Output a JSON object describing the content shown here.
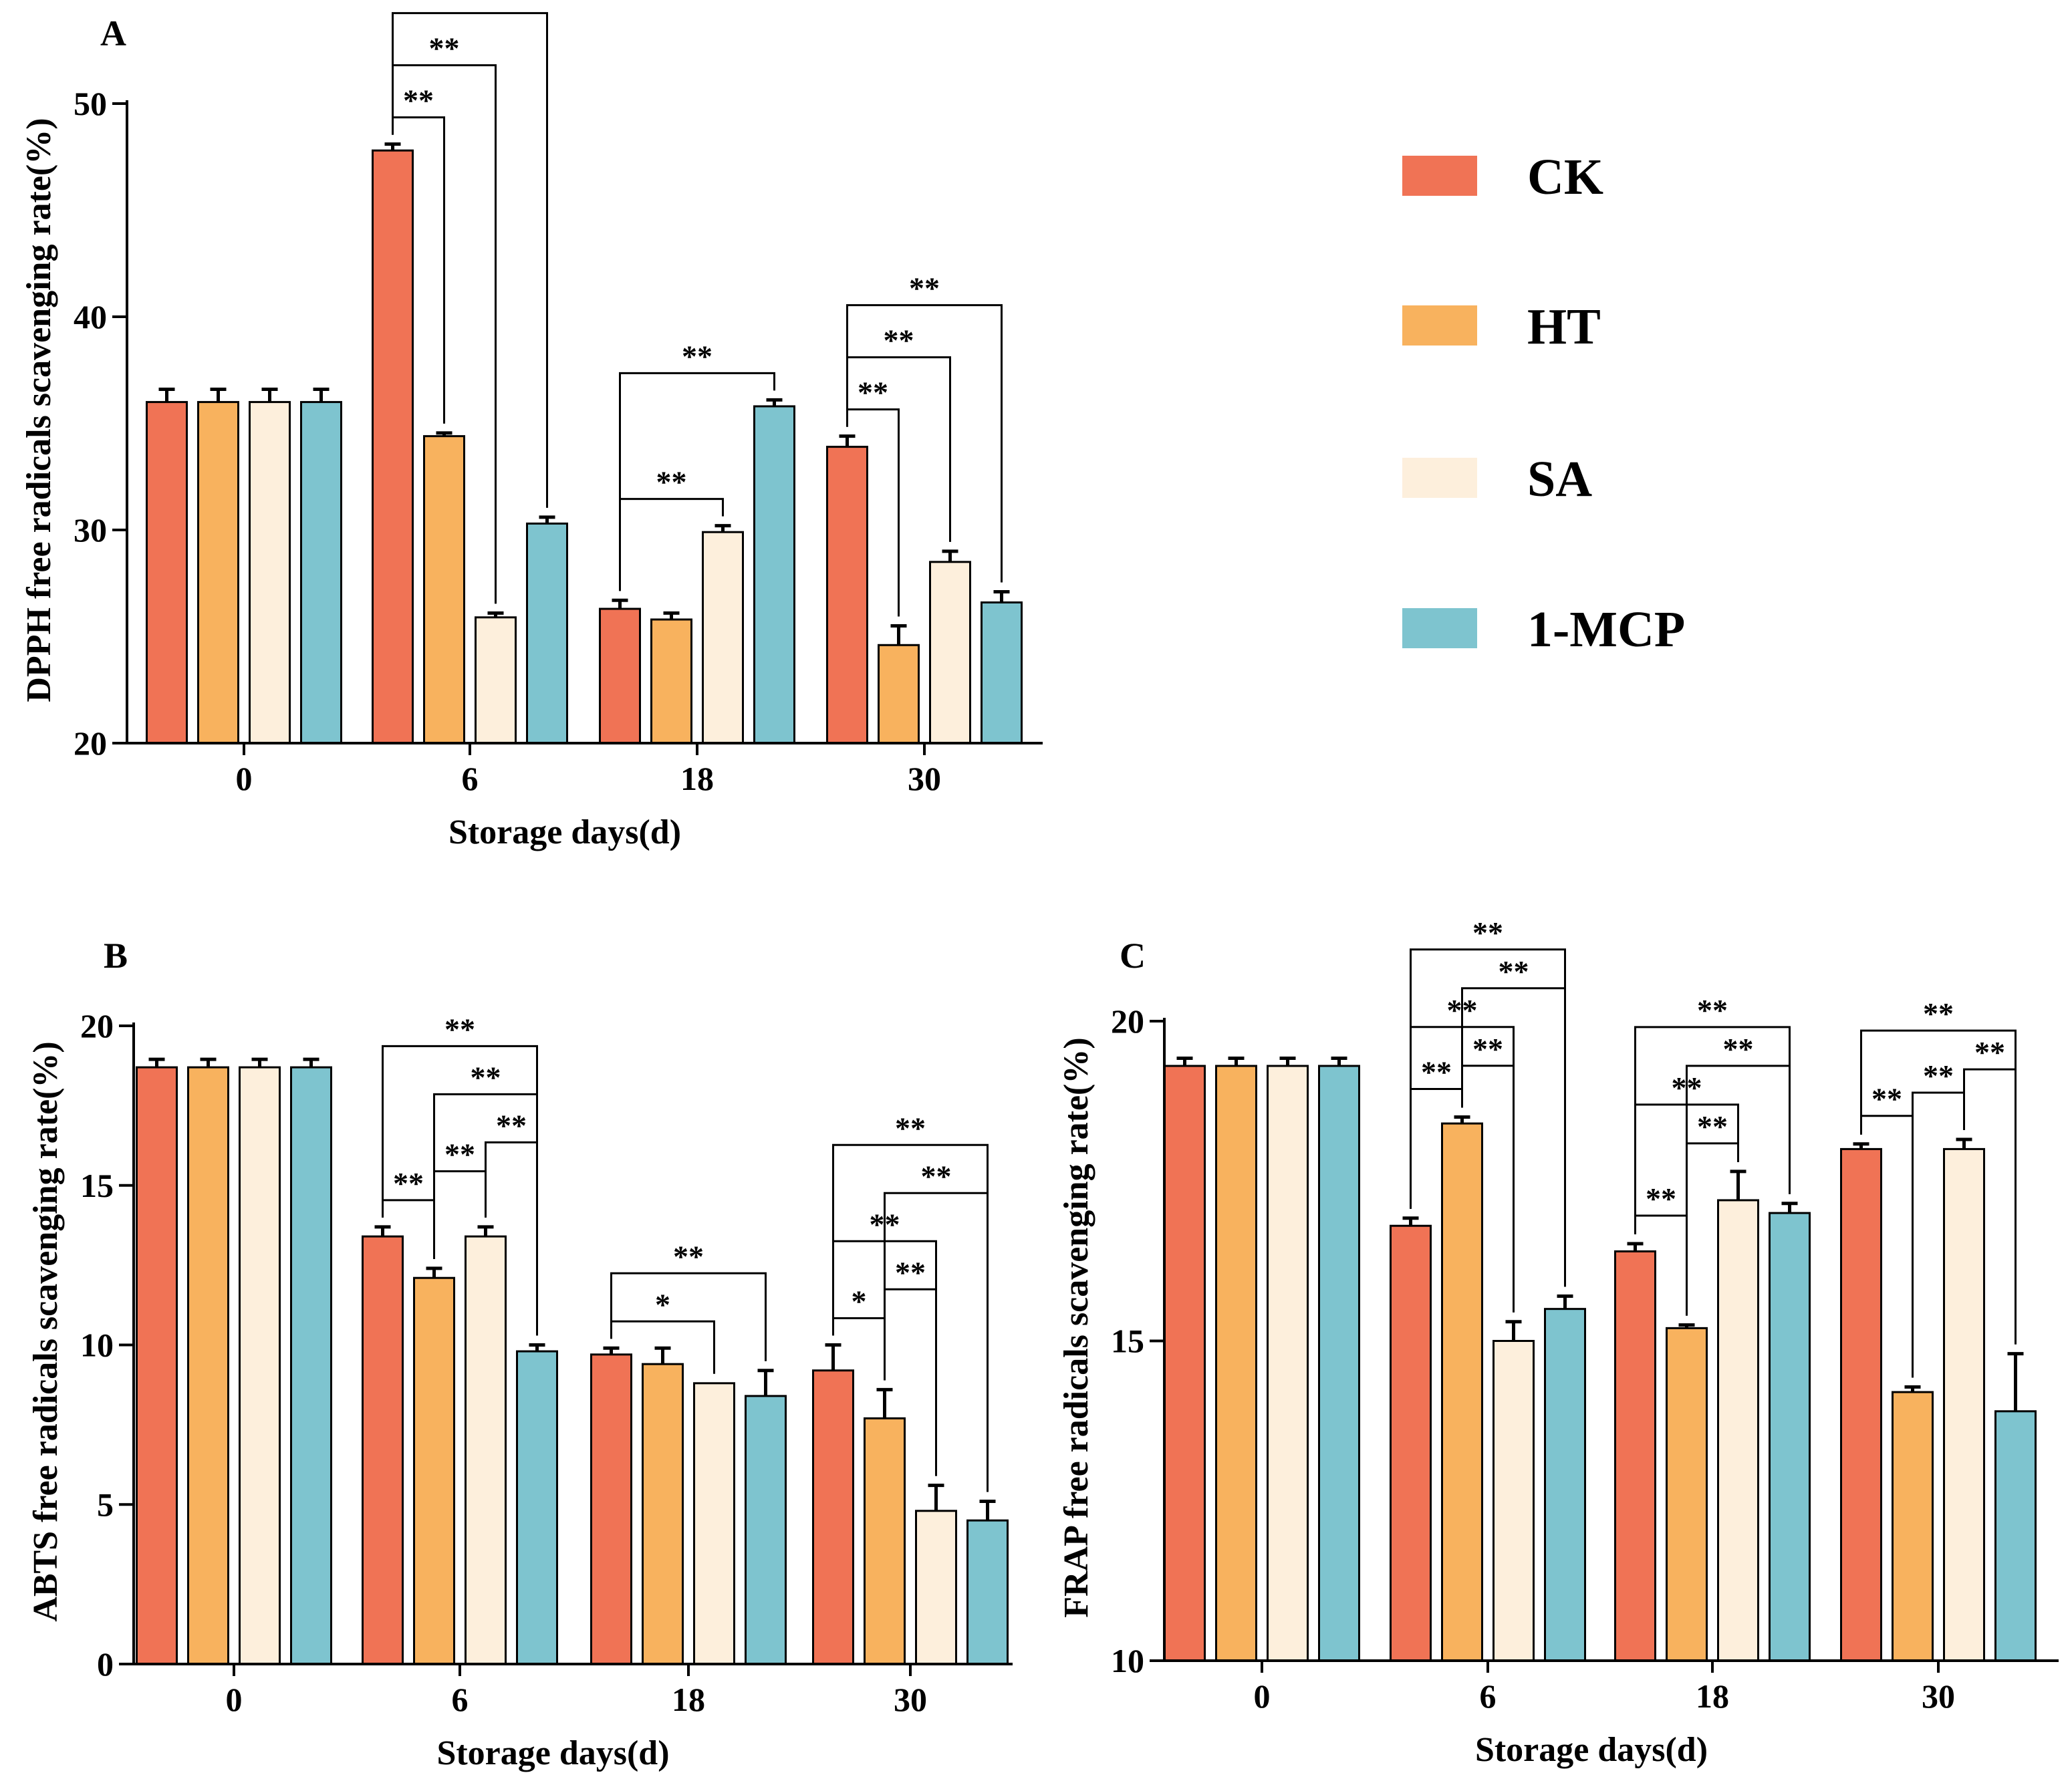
{
  "colors": {
    "CK": "#f07355",
    "HT": "#f8b25e",
    "SA": "#fdefdc",
    "1-MCP": "#7ec4cf"
  },
  "legend": {
    "labels": [
      "CK",
      "HT",
      "SA",
      "1-MCP"
    ]
  },
  "chart_data": [
    {
      "id": "A",
      "type": "bar",
      "panel": "A",
      "title": "",
      "xlabel": "Storage days(d)",
      "ylabel": "DPPH free radicals scavenging rate(%)",
      "categories": [
        "0",
        "6",
        "18",
        "30"
      ],
      "ylim": [
        20,
        50
      ],
      "yticks": [
        20,
        30,
        40,
        50
      ],
      "series": [
        {
          "name": "CK",
          "values": [
            36.0,
            47.8,
            26.3,
            33.9
          ],
          "errors": [
            0.6,
            0.3,
            0.4,
            0.5
          ]
        },
        {
          "name": "HT",
          "values": [
            36.0,
            34.4,
            25.8,
            24.6
          ],
          "errors": [
            0.6,
            0.15,
            0.3,
            0.9
          ]
        },
        {
          "name": "SA",
          "values": [
            36.0,
            25.9,
            29.9,
            28.5
          ],
          "errors": [
            0.6,
            0.2,
            0.3,
            0.5
          ]
        },
        {
          "name": "1-MCP",
          "values": [
            36.0,
            30.3,
            35.8,
            26.6
          ],
          "errors": [
            0.6,
            0.3,
            0.3,
            0.5
          ]
        }
      ],
      "significance": [
        {
          "cat": 1,
          "from": 0,
          "to": 1,
          "label": "**"
        },
        {
          "cat": 1,
          "from": 0,
          "to": 2,
          "label": "**"
        },
        {
          "cat": 1,
          "from": 0,
          "to": 3,
          "label": "**"
        },
        {
          "cat": 2,
          "from": 0,
          "to": 2,
          "label": "**"
        },
        {
          "cat": 2,
          "from": 0,
          "to": 3,
          "label": "**"
        },
        {
          "cat": 3,
          "from": 0,
          "to": 1,
          "label": "**"
        },
        {
          "cat": 3,
          "from": 0,
          "to": 2,
          "label": "**"
        },
        {
          "cat": 3,
          "from": 0,
          "to": 3,
          "label": "**"
        }
      ]
    },
    {
      "id": "B",
      "type": "bar",
      "panel": "B",
      "title": "",
      "xlabel": "Storage days(d)",
      "ylabel": "ABTS free radicals scavenging rate(%)",
      "categories": [
        "0",
        "6",
        "18",
        "30"
      ],
      "ylim": [
        0,
        20
      ],
      "yticks": [
        0,
        5,
        10,
        15,
        20
      ],
      "series": [
        {
          "name": "CK",
          "values": [
            18.7,
            13.4,
            9.7,
            9.2
          ],
          "errors": [
            0.25,
            0.3,
            0.2,
            0.8
          ]
        },
        {
          "name": "HT",
          "values": [
            18.7,
            12.1,
            9.4,
            7.7
          ],
          "errors": [
            0.25,
            0.3,
            0.5,
            0.9
          ]
        },
        {
          "name": "SA",
          "values": [
            18.7,
            13.4,
            8.8,
            4.8
          ],
          "errors": [
            0.25,
            0.3,
            0.0,
            0.8
          ]
        },
        {
          "name": "1-MCP",
          "values": [
            18.7,
            9.8,
            8.4,
            4.5
          ],
          "errors": [
            0.25,
            0.2,
            0.8,
            0.6
          ]
        }
      ],
      "significance": [
        {
          "cat": 1,
          "from": 0,
          "to": 1,
          "label": "**"
        },
        {
          "cat": 1,
          "from": 1,
          "to": 2,
          "label": "**"
        },
        {
          "cat": 1,
          "from": 2,
          "to": 3,
          "label": "**"
        },
        {
          "cat": 1,
          "from": 1,
          "to": 3,
          "label": "**"
        },
        {
          "cat": 1,
          "from": 0,
          "to": 3,
          "label": "**"
        },
        {
          "cat": 2,
          "from": 0,
          "to": 2,
          "label": "*"
        },
        {
          "cat": 2,
          "from": 0,
          "to": 3,
          "label": "**"
        },
        {
          "cat": 3,
          "from": 0,
          "to": 1,
          "label": "*"
        },
        {
          "cat": 3,
          "from": 1,
          "to": 2,
          "label": "**"
        },
        {
          "cat": 3,
          "from": 1,
          "to": 3,
          "label": "**"
        },
        {
          "cat": 3,
          "from": 0,
          "to": 2,
          "label": "**"
        },
        {
          "cat": 3,
          "from": 0,
          "to": 3,
          "label": "**"
        }
      ]
    },
    {
      "id": "C",
      "type": "bar",
      "panel": "C",
      "title": "",
      "xlabel": "Storage days(d)",
      "ylabel": "FRAP free radicals scavenging rate(%)",
      "categories": [
        "0",
        "6",
        "18",
        "30"
      ],
      "ylim": [
        10,
        20
      ],
      "yticks": [
        10,
        15,
        20
      ],
      "series": [
        {
          "name": "CK",
          "values": [
            19.3,
            16.8,
            16.4,
            18.0
          ],
          "errors": [
            0.12,
            0.12,
            0.12,
            0.08
          ]
        },
        {
          "name": "HT",
          "values": [
            19.3,
            18.4,
            15.2,
            14.2
          ],
          "errors": [
            0.12,
            0.1,
            0.05,
            0.08
          ]
        },
        {
          "name": "SA",
          "values": [
            19.3,
            15.0,
            17.2,
            18.0
          ],
          "errors": [
            0.12,
            0.3,
            0.45,
            0.15
          ]
        },
        {
          "name": "1-MCP",
          "values": [
            19.3,
            15.5,
            17.0,
            13.9
          ],
          "errors": [
            0.12,
            0.2,
            0.15,
            0.9
          ]
        }
      ],
      "significance": [
        {
          "cat": 1,
          "from": 0,
          "to": 1,
          "label": "**"
        },
        {
          "cat": 1,
          "from": 1,
          "to": 2,
          "label": "**"
        },
        {
          "cat": 1,
          "from": 1,
          "to": 3,
          "label": "**"
        },
        {
          "cat": 1,
          "from": 0,
          "to": 2,
          "label": "**"
        },
        {
          "cat": 1,
          "from": 0,
          "to": 3,
          "label": "**"
        },
        {
          "cat": 2,
          "from": 0,
          "to": 1,
          "label": "**"
        },
        {
          "cat": 2,
          "from": 1,
          "to": 2,
          "label": "**"
        },
        {
          "cat": 2,
          "from": 1,
          "to": 3,
          "label": "**"
        },
        {
          "cat": 2,
          "from": 0,
          "to": 2,
          "label": "**"
        },
        {
          "cat": 2,
          "from": 0,
          "to": 3,
          "label": "**"
        },
        {
          "cat": 3,
          "from": 0,
          "to": 1,
          "label": "**"
        },
        {
          "cat": 3,
          "from": 1,
          "to": 2,
          "label": "**"
        },
        {
          "cat": 3,
          "from": 2,
          "to": 3,
          "label": "**"
        },
        {
          "cat": 3,
          "from": 0,
          "to": 3,
          "label": "**"
        }
      ]
    }
  ]
}
